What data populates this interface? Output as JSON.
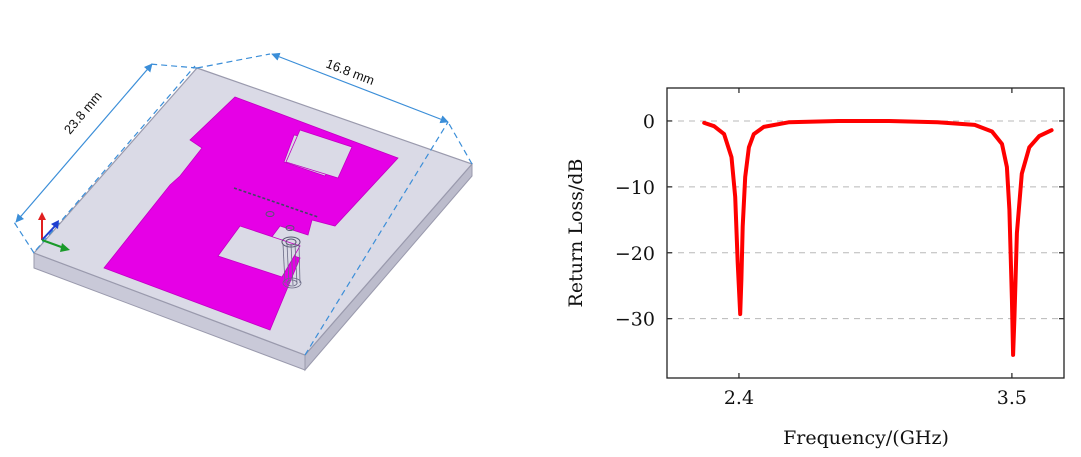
{
  "antenna": {
    "width_label": "23.8 mm",
    "length_label": "16.8 mm",
    "substrate_color": "#d7d7e3",
    "patch_color": "#e600e6",
    "dimension_color": "#3b8ed8",
    "axis_icon_colors": [
      "#e02020",
      "#1f3fd0",
      "#1a9a2a"
    ]
  },
  "chart_data": {
    "type": "line",
    "title": "",
    "xlabel": "Frequency/(GHz)",
    "ylabel": "Return Loss/dB",
    "xlim": [
      2.11,
      3.71
    ],
    "ylim": [
      -39,
      5
    ],
    "xticks": [
      2.4,
      3.5
    ],
    "xtick_labels": [
      "2.4",
      "3.5"
    ],
    "yticks": [
      0,
      -10,
      -20,
      -30
    ],
    "ytick_labels": [
      "0",
      "−10",
      "−20",
      "−30"
    ],
    "grid": "horizontal-dashed",
    "line_color": "#ff0000",
    "series": [
      {
        "x": [
          2.26,
          2.3,
          2.34,
          2.37,
          2.385,
          2.395,
          2.405,
          2.41,
          2.415,
          2.425,
          2.44,
          2.46,
          2.5,
          2.6,
          2.8,
          3.0,
          3.2,
          3.35,
          3.42,
          3.46,
          3.48,
          3.49,
          3.5,
          3.505,
          3.51,
          3.52,
          3.54,
          3.57,
          3.61,
          3.66
        ],
        "y": [
          -0.3,
          -0.8,
          -2.0,
          -5.5,
          -11.5,
          -21.5,
          -29.3,
          -24.0,
          -16.0,
          -8.5,
          -4.0,
          -2.0,
          -0.9,
          -0.2,
          0.0,
          0.0,
          -0.2,
          -0.6,
          -1.6,
          -3.5,
          -7.0,
          -13.5,
          -27.0,
          -35.5,
          -30.0,
          -17.0,
          -8.0,
          -4.0,
          -2.3,
          -1.4
        ]
      }
    ]
  }
}
